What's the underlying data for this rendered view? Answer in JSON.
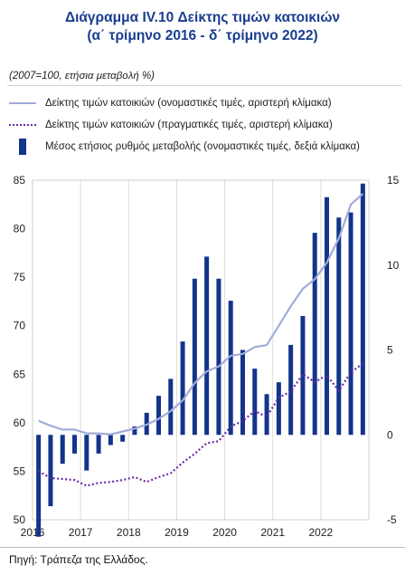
{
  "title_line1": "Διάγραμμα IV.10 Δείκτης τιμών κατοικιών",
  "title_line2": "(α΄ τρίμηνο 2016 - δ΄ τρίμηνο 2022)",
  "units_note": "(2007=100, ετήσια μεταβολή %)",
  "source": "Πηγή: Τράπεζα της Ελλάδος.",
  "chart_data": {
    "type": "bar+line",
    "categories": [
      "2016Q1",
      "2016Q2",
      "2016Q3",
      "2016Q4",
      "2017Q1",
      "2017Q2",
      "2017Q3",
      "2017Q4",
      "2018Q1",
      "2018Q2",
      "2018Q3",
      "2018Q4",
      "2019Q1",
      "2019Q2",
      "2019Q3",
      "2019Q4",
      "2020Q1",
      "2020Q2",
      "2020Q3",
      "2020Q4",
      "2021Q1",
      "2021Q2",
      "2021Q3",
      "2021Q4",
      "2022Q1",
      "2022Q2",
      "2022Q3",
      "2022Q4"
    ],
    "x_tick_labels": [
      "2016",
      "2017",
      "2018",
      "2019",
      "2020",
      "2021",
      "2022"
    ],
    "left_axis": {
      "min": 50,
      "max": 85,
      "ticks": [
        "50",
        "55",
        "60",
        "65",
        "70",
        "75",
        "80",
        "85"
      ]
    },
    "right_axis": {
      "min": -5,
      "max": 15,
      "ticks": [
        "-5",
        "0",
        "5",
        "10",
        "15"
      ]
    },
    "legend_position": "top",
    "grid": "vertical",
    "series": [
      {
        "name": "Δείκτης τιμών κατοικιών (ονομαστικές τιμές, αριστερή κλίμακα)",
        "style": "line",
        "axis": "left",
        "color": "#a2acd9",
        "values": [
          60.2,
          59.7,
          59.3,
          59.3,
          58.9,
          58.9,
          58.8,
          59.1,
          59.4,
          59.8,
          60.4,
          61.2,
          62.3,
          64.1,
          65.3,
          65.8,
          66.9,
          67.1,
          67.8,
          68.0,
          70.0,
          72.0,
          73.8,
          74.8,
          76.5,
          79.0,
          82.5,
          83.6
        ]
      },
      {
        "name": "Δείκτης τιμών κατοικιών (πραγματικές τιμές, αριστερή κλίμακα)",
        "style": "dotted",
        "axis": "left",
        "color": "#6a2aa8",
        "values": [
          55.0,
          54.3,
          54.2,
          54.1,
          53.5,
          53.8,
          53.9,
          54.1,
          54.4,
          53.9,
          54.4,
          54.8,
          55.9,
          56.8,
          57.9,
          58.1,
          59.6,
          60.2,
          61.2,
          60.6,
          62.6,
          63.2,
          65.0,
          64.2,
          64.9,
          63.3,
          65.2,
          66.1
        ]
      },
      {
        "name": "Μέσος ετήσιος ρυθμός μεταβολής (ονομαστικές τιμές, δεξιά κλίμακα)",
        "style": "bar",
        "axis": "right",
        "color": "#12348a",
        "values": [
          -6.0,
          -4.2,
          -1.7,
          -1.1,
          -2.1,
          -1.1,
          -0.6,
          -0.4,
          0.5,
          1.3,
          2.3,
          3.3,
          5.5,
          9.2,
          10.5,
          9.2,
          7.9,
          5.0,
          3.9,
          2.4,
          3.1,
          5.3,
          7.0,
          11.9,
          14.0,
          12.8,
          13.1,
          14.8
        ]
      }
    ]
  }
}
